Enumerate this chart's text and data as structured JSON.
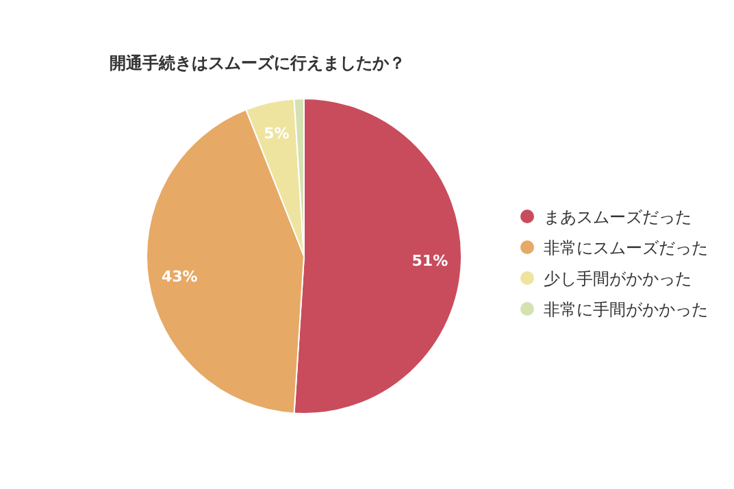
{
  "chart_data": {
    "type": "pie",
    "title": "開通手続きはスムーズに行えましたか？",
    "categories": [
      "まあスムーズだった",
      "非常にスムーズだった",
      "少し手間がかかった",
      "非常に手間がかかった"
    ],
    "values": [
      51,
      43,
      5,
      1
    ],
    "value_labels": [
      "51%",
      "43%",
      "5%",
      null
    ],
    "colors": [
      "#c94c5c",
      "#e6a966",
      "#eee4a0",
      "#d4e2b2"
    ],
    "legend": "right"
  }
}
